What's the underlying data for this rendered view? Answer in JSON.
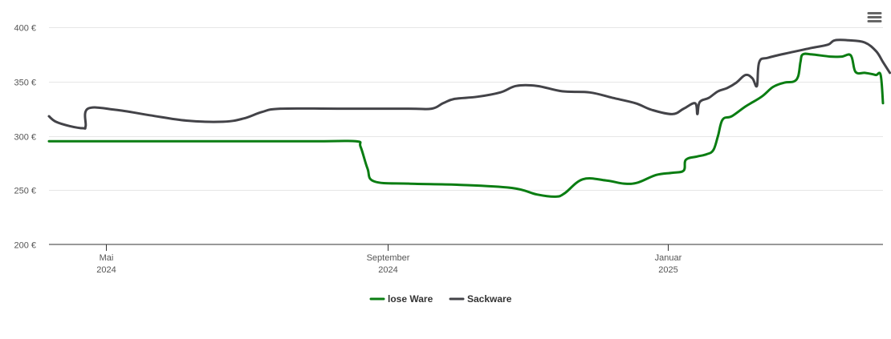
{
  "menu": {
    "icon": "hamburger-menu-icon"
  },
  "chart_data": {
    "type": "line",
    "title": "",
    "xlabel": "",
    "ylabel": "",
    "x_ticks": [
      {
        "date": "2024-05-01",
        "label_month": "Mai",
        "label_year": "2024"
      },
      {
        "date": "2024-09-01",
        "label_month": "September",
        "label_year": "2024"
      },
      {
        "date": "2025-01-01",
        "label_month": "Januar",
        "label_year": "2025"
      }
    ],
    "xlim": [
      "2024-04-06",
      "2025-04-05"
    ],
    "y_ticks": [
      200,
      250,
      300,
      350,
      400
    ],
    "y_tick_labels": [
      "200 €",
      "250 €",
      "300 €",
      "350 €",
      "400 €"
    ],
    "ylim": [
      200,
      400
    ],
    "grid": true,
    "legend_position": "bottom-center",
    "series": [
      {
        "name": "lose Ware",
        "color": "#0a7d12",
        "points": [
          [
            "2024-04-06",
            295
          ],
          [
            "2024-06-01",
            295
          ],
          [
            "2024-08-01",
            295
          ],
          [
            "2024-08-18",
            295
          ],
          [
            "2024-08-20",
            290
          ],
          [
            "2024-08-23",
            270
          ],
          [
            "2024-08-26",
            258
          ],
          [
            "2024-09-10",
            256
          ],
          [
            "2024-10-01",
            255
          ],
          [
            "2024-10-25",
            252
          ],
          [
            "2024-11-05",
            246
          ],
          [
            "2024-11-13",
            244
          ],
          [
            "2024-11-17",
            247
          ],
          [
            "2024-11-25",
            260
          ],
          [
            "2024-12-05",
            259
          ],
          [
            "2024-12-13",
            256
          ],
          [
            "2024-12-19",
            257
          ],
          [
            "2024-12-27",
            264
          ],
          [
            "2025-01-03",
            266
          ],
          [
            "2025-01-08",
            268
          ],
          [
            "2025-01-09",
            278
          ],
          [
            "2025-01-14",
            281
          ],
          [
            "2025-01-18",
            283
          ],
          [
            "2025-01-21",
            287
          ],
          [
            "2025-01-23",
            300
          ],
          [
            "2025-01-25",
            315
          ],
          [
            "2025-01-29",
            318
          ],
          [
            "2025-02-04",
            327
          ],
          [
            "2025-02-11",
            336
          ],
          [
            "2025-02-16",
            345
          ],
          [
            "2025-02-21",
            349
          ],
          [
            "2025-02-25",
            350
          ],
          [
            "2025-02-27",
            355
          ],
          [
            "2025-02-28",
            368
          ],
          [
            "2025-03-01",
            375
          ],
          [
            "2025-03-05",
            375
          ],
          [
            "2025-03-13",
            373
          ],
          [
            "2025-03-18",
            373
          ],
          [
            "2025-03-22",
            374
          ],
          [
            "2025-03-24",
            359
          ],
          [
            "2025-03-28",
            358
          ],
          [
            "2025-03-31",
            357
          ],
          [
            "2025-04-02",
            356
          ],
          [
            "2025-04-04",
            356
          ],
          [
            "2025-04-05",
            330
          ]
        ]
      },
      {
        "name": "Sackware",
        "color": "#434348",
        "points": [
          [
            "2024-04-06",
            318
          ],
          [
            "2024-04-09",
            313
          ],
          [
            "2024-04-15",
            309
          ],
          [
            "2024-04-21",
            307
          ],
          [
            "2024-04-22",
            309
          ],
          [
            "2024-04-23",
            325
          ],
          [
            "2024-05-05",
            324
          ],
          [
            "2024-05-20",
            319
          ],
          [
            "2024-06-05",
            314
          ],
          [
            "2024-06-21",
            313
          ],
          [
            "2024-06-30",
            316
          ],
          [
            "2024-07-08",
            322
          ],
          [
            "2024-07-16",
            325
          ],
          [
            "2024-08-10",
            325
          ],
          [
            "2024-09-10",
            325
          ],
          [
            "2024-09-20",
            325
          ],
          [
            "2024-09-25",
            330
          ],
          [
            "2024-09-30",
            334
          ],
          [
            "2024-10-10",
            336
          ],
          [
            "2024-10-20",
            340
          ],
          [
            "2024-10-27",
            346
          ],
          [
            "2024-11-05",
            346
          ],
          [
            "2024-11-16",
            341
          ],
          [
            "2024-11-28",
            340
          ],
          [
            "2024-12-08",
            335
          ],
          [
            "2024-12-18",
            330
          ],
          [
            "2024-12-25",
            324
          ],
          [
            "2025-01-03",
            320
          ],
          [
            "2025-01-08",
            325
          ],
          [
            "2025-01-13",
            330
          ],
          [
            "2025-01-14",
            320
          ],
          [
            "2025-01-15",
            331
          ],
          [
            "2025-01-19",
            335
          ],
          [
            "2025-01-23",
            341
          ],
          [
            "2025-01-27",
            344
          ],
          [
            "2025-01-31",
            349
          ],
          [
            "2025-02-04",
            356
          ],
          [
            "2025-02-07",
            353
          ],
          [
            "2025-02-09",
            346
          ],
          [
            "2025-02-10",
            368
          ],
          [
            "2025-02-14",
            372
          ],
          [
            "2025-02-24",
            377
          ],
          [
            "2025-03-05",
            381
          ],
          [
            "2025-03-12",
            384
          ],
          [
            "2025-03-15",
            388
          ],
          [
            "2025-03-21",
            388
          ],
          [
            "2025-03-28",
            386
          ],
          [
            "2025-04-02",
            378
          ],
          [
            "2025-04-05",
            368
          ],
          [
            "2025-04-08",
            358
          ]
        ]
      }
    ]
  }
}
